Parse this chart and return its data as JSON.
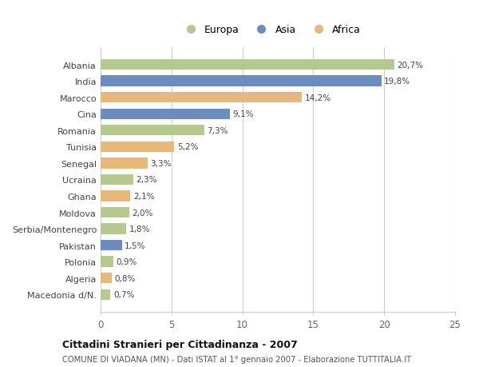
{
  "categories": [
    "Albania",
    "India",
    "Marocco",
    "Cina",
    "Romania",
    "Tunisia",
    "Senegal",
    "Ucraina",
    "Ghana",
    "Moldova",
    "Serbia/Montenegro",
    "Pakistan",
    "Polonia",
    "Algeria",
    "Macedonia d/N."
  ],
  "values": [
    20.7,
    19.8,
    14.2,
    9.1,
    7.3,
    5.2,
    3.3,
    2.3,
    2.1,
    2.0,
    1.8,
    1.5,
    0.9,
    0.8,
    0.7
  ],
  "labels": [
    "20,7%",
    "19,8%",
    "14,2%",
    "9,1%",
    "7,3%",
    "5,2%",
    "3,3%",
    "2,3%",
    "2,1%",
    "2,0%",
    "1,8%",
    "1,5%",
    "0,9%",
    "0,8%",
    "0,7%"
  ],
  "continent": [
    "Europa",
    "Asia",
    "Africa",
    "Asia",
    "Europa",
    "Africa",
    "Africa",
    "Europa",
    "Africa",
    "Europa",
    "Europa",
    "Asia",
    "Europa",
    "Africa",
    "Europa"
  ],
  "colors": {
    "Europa": "#b5c98e",
    "Asia": "#6b8cbf",
    "Africa": "#e8b87a"
  },
  "xlim": [
    0,
    25
  ],
  "xticks": [
    0,
    5,
    10,
    15,
    20,
    25
  ],
  "title": "Cittadini Stranieri per Cittadinanza - 2007",
  "subtitle": "COMUNE DI VIADANA (MN) - Dati ISTAT al 1° gennaio 2007 - Elaborazione TUTTITALIA.IT",
  "background_color": "#ffffff",
  "bar_height": 0.65,
  "grid_color": "#cccccc"
}
